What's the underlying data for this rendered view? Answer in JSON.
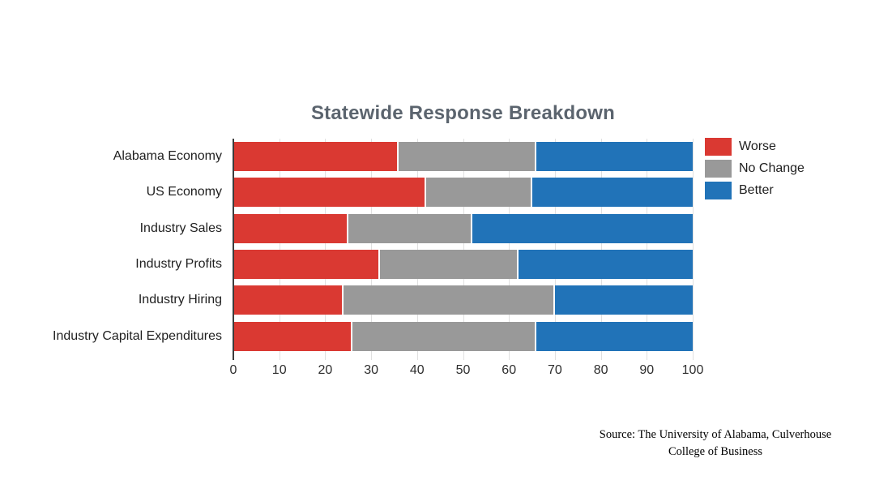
{
  "chart_data": {
    "type": "bar",
    "orientation": "horizontal",
    "stacked": true,
    "title": "Statewide Response Breakdown",
    "categories": [
      "Alabama Economy",
      "US Economy",
      "Industry Sales",
      "Industry Profits",
      "Industry Hiring",
      "Industry Capital Expenditures"
    ],
    "series": [
      {
        "name": "Worse",
        "color": "#da3932",
        "values": [
          36,
          42,
          25,
          32,
          24,
          26
        ]
      },
      {
        "name": "No Change",
        "color": "#999999",
        "values": [
          30,
          23,
          27,
          30,
          46,
          40
        ]
      },
      {
        "name": "Better",
        "color": "#2173b8",
        "values": [
          34,
          35,
          48,
          38,
          30,
          34
        ]
      }
    ],
    "xlabel": "",
    "ylabel": "",
    "xlim": [
      0,
      100
    ],
    "x_ticks": [
      0,
      10,
      20,
      30,
      40,
      50,
      60,
      70,
      80,
      90,
      100
    ],
    "grid": true,
    "legend_position": "right-top"
  },
  "source": {
    "line1": "Source: The University of Alabama, Culverhouse",
    "line2": "College of Business"
  },
  "colors": {
    "title_text": "#5b646e",
    "axis_text": "#2e2e2e",
    "label_text": "#1f1f1f",
    "gridline": "#e0e0e0",
    "zero_axis": "#3c3c3c",
    "background": "#ffffff"
  }
}
